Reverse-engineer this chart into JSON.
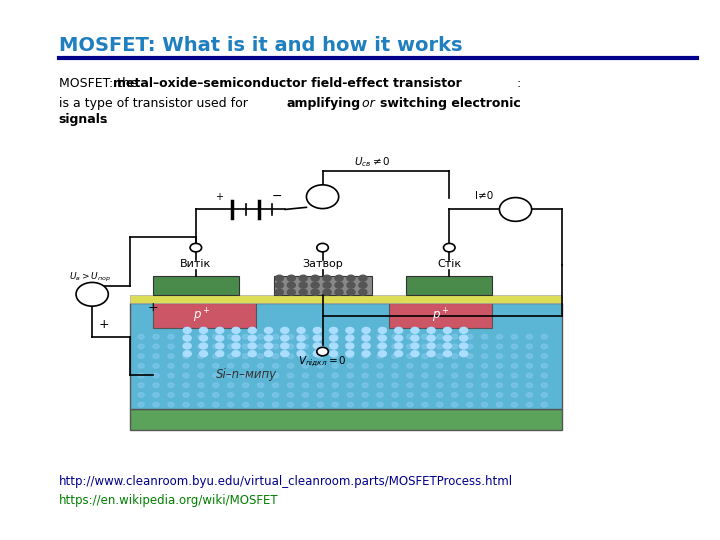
{
  "title": "MOSFET: What is it and how it works",
  "title_color": "#1F7FBF",
  "title_bar_color": "#00008B",
  "body_text_line1_plain": "MOSFET: the ",
  "body_text_line1_bold": "metal–oxide–semiconductor field-effect transistor",
  "body_text_line1_end": ":",
  "body_text_line2": "is a type of transistor used for ",
  "body_text_line2_bold1": "amplifying",
  "body_text_line2_italic": " or ",
  "body_text_line2_bold2": "switching electronic\nsignals",
  "body_text_line2_end": ".",
  "link1": "http://www.cleanroom.byu.edu/virtual_cleanroom.parts/MOSFETProcess.html",
  "link1_color": "#00008B",
  "link2": "https://en.wikipedia.org/wiki/MOSFET",
  "link2_color": "#008000",
  "bg_color": "#FFFFFF",
  "diagram_image": "mosfet_diagram"
}
